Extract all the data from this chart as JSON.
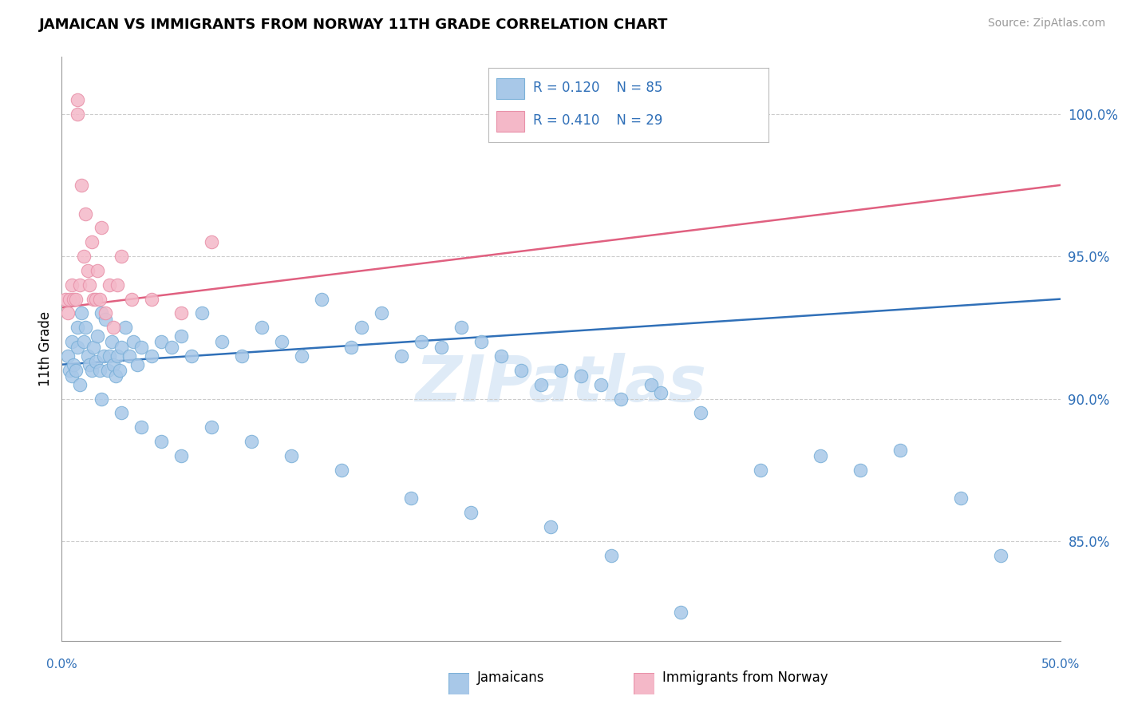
{
  "title": "JAMAICAN VS IMMIGRANTS FROM NORWAY 11TH GRADE CORRELATION CHART",
  "source_text": "Source: ZipAtlas.com",
  "ylabel": "11th Grade",
  "ymin": 81.5,
  "ymax": 102.0,
  "xmin": 0.0,
  "xmax": 50.0,
  "yticks": [
    85.0,
    90.0,
    95.0,
    100.0
  ],
  "ytick_labels": [
    "85.0%",
    "90.0%",
    "95.0%",
    "100.0%"
  ],
  "blue_color": "#a8c8e8",
  "pink_color": "#f4b8c8",
  "blue_edge_color": "#7ab0d8",
  "pink_edge_color": "#e890a8",
  "blue_line_color": "#3070b8",
  "pink_line_color": "#e06080",
  "legend_r_blue": "R = 0.120",
  "legend_n_blue": "N = 85",
  "legend_r_pink": "R = 0.410",
  "legend_n_pink": "N = 29",
  "watermark": "ZIPatlas",
  "watermark_color": "#c0d8f0",
  "blue_scatter_x": [
    0.3,
    0.4,
    0.5,
    0.5,
    0.6,
    0.7,
    0.8,
    0.8,
    0.9,
    1.0,
    1.1,
    1.2,
    1.3,
    1.4,
    1.5,
    1.6,
    1.7,
    1.8,
    1.9,
    2.0,
    2.1,
    2.2,
    2.3,
    2.4,
    2.5,
    2.6,
    2.7,
    2.8,
    2.9,
    3.0,
    3.2,
    3.4,
    3.6,
    3.8,
    4.0,
    4.5,
    5.0,
    5.5,
    6.0,
    6.5,
    7.0,
    8.0,
    9.0,
    10.0,
    11.0,
    12.0,
    13.0,
    14.5,
    15.0,
    16.0,
    17.0,
    18.0,
    19.0,
    20.0,
    21.0,
    22.0,
    23.0,
    24.0,
    25.0,
    26.0,
    27.0,
    28.0,
    29.5,
    30.0,
    32.0,
    35.0,
    38.0,
    40.0,
    42.0,
    45.0,
    47.0,
    2.0,
    3.0,
    4.0,
    5.0,
    6.0,
    7.5,
    9.5,
    11.5,
    14.0,
    17.5,
    20.5,
    24.5,
    27.5,
    31.0
  ],
  "blue_scatter_y": [
    91.5,
    91.0,
    90.8,
    92.0,
    91.2,
    91.0,
    92.5,
    91.8,
    90.5,
    93.0,
    92.0,
    92.5,
    91.5,
    91.2,
    91.0,
    91.8,
    91.3,
    92.2,
    91.0,
    93.0,
    91.5,
    92.8,
    91.0,
    91.5,
    92.0,
    91.2,
    90.8,
    91.5,
    91.0,
    91.8,
    92.5,
    91.5,
    92.0,
    91.2,
    91.8,
    91.5,
    92.0,
    91.8,
    92.2,
    91.5,
    93.0,
    92.0,
    91.5,
    92.5,
    92.0,
    91.5,
    93.5,
    91.8,
    92.5,
    93.0,
    91.5,
    92.0,
    91.8,
    92.5,
    92.0,
    91.5,
    91.0,
    90.5,
    91.0,
    90.8,
    90.5,
    90.0,
    90.5,
    90.2,
    89.5,
    87.5,
    88.0,
    87.5,
    88.2,
    86.5,
    84.5,
    90.0,
    89.5,
    89.0,
    88.5,
    88.0,
    89.0,
    88.5,
    88.0,
    87.5,
    86.5,
    86.0,
    85.5,
    84.5,
    82.5
  ],
  "pink_scatter_x": [
    0.2,
    0.3,
    0.4,
    0.5,
    0.6,
    0.7,
    0.8,
    0.8,
    0.9,
    1.0,
    1.1,
    1.2,
    1.3,
    1.4,
    1.5,
    1.6,
    1.7,
    1.8,
    1.9,
    2.0,
    2.2,
    2.4,
    2.6,
    2.8,
    3.0,
    3.5,
    4.5,
    6.0,
    7.5
  ],
  "pink_scatter_y": [
    93.5,
    93.0,
    93.5,
    94.0,
    93.5,
    93.5,
    100.0,
    100.5,
    94.0,
    97.5,
    95.0,
    96.5,
    94.5,
    94.0,
    95.5,
    93.5,
    93.5,
    94.5,
    93.5,
    96.0,
    93.0,
    94.0,
    92.5,
    94.0,
    95.0,
    93.5,
    93.5,
    93.0,
    95.5
  ],
  "blue_trendline_x": [
    0.0,
    50.0
  ],
  "blue_trendline_y": [
    91.2,
    93.5
  ],
  "pink_trendline_x": [
    0.0,
    50.0
  ],
  "pink_trendline_y": [
    93.2,
    97.5
  ]
}
